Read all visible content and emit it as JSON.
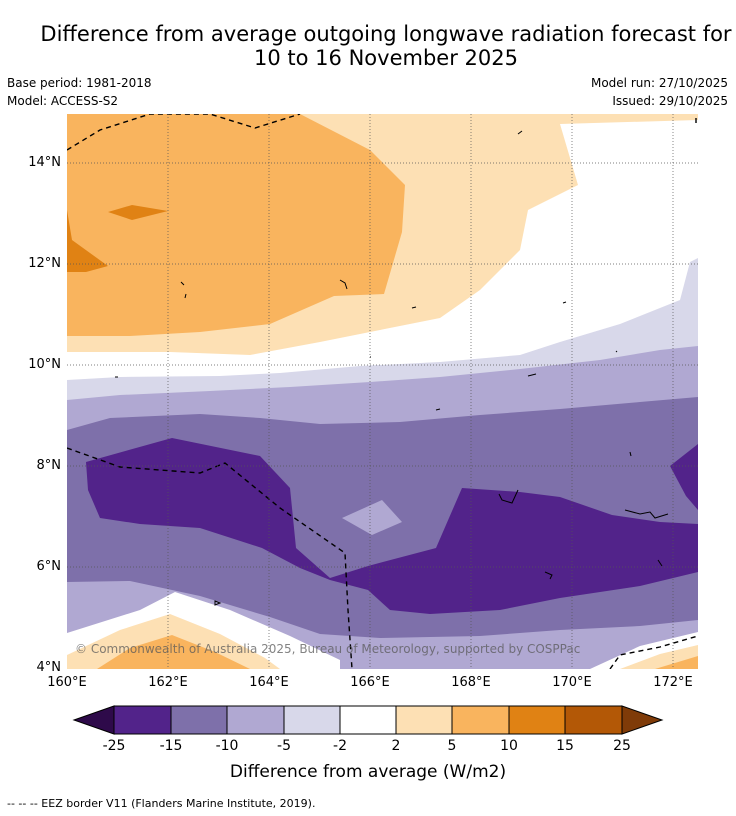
{
  "title": {
    "line1": "Difference from average outgoing longwave radiation forecast for",
    "line2": "10 to 16 November 2025"
  },
  "meta": {
    "base_period": "Base period: 1981-2018",
    "model": "Model: ACCESS-S2",
    "model_run": "Model run: 27/10/2025",
    "issued": "Issued: 29/10/2025"
  },
  "map": {
    "lat_labels": [
      "14°N",
      "12°N",
      "10°N",
      "8°N",
      "6°N",
      "4°N"
    ],
    "lon_labels": [
      "160°E",
      "162°E",
      "164°E",
      "166°E",
      "168°E",
      "170°E",
      "172°E"
    ],
    "copyright": "© Commonwealth of Australia 2025, Bureau of Meteorology, supported by COSPPac"
  },
  "colorbar": {
    "ticks": [
      "-25",
      "-15",
      "-10",
      "-5",
      "-2",
      "2",
      "5",
      "10",
      "15",
      "25"
    ],
    "colors": {
      "lt_minus25": "#2e0a4a",
      "m25_m15": "#52238a",
      "m15_m10": "#7e70aa",
      "m10_m5": "#b0a8d2",
      "m5_m2": "#d8d8ea",
      "m2_2": "#ffffff",
      "p2_5": "#fde0b4",
      "p5_10": "#f9b45e",
      "p10_15": "#e08214",
      "p15_25": "#b35806",
      "gt_25": "#7f3b08"
    },
    "label": "Difference from average (W/m2)"
  },
  "footer": {
    "legend": "--  --  -- EEZ border V11 (Flanders Marine Institute, 2019)."
  }
}
